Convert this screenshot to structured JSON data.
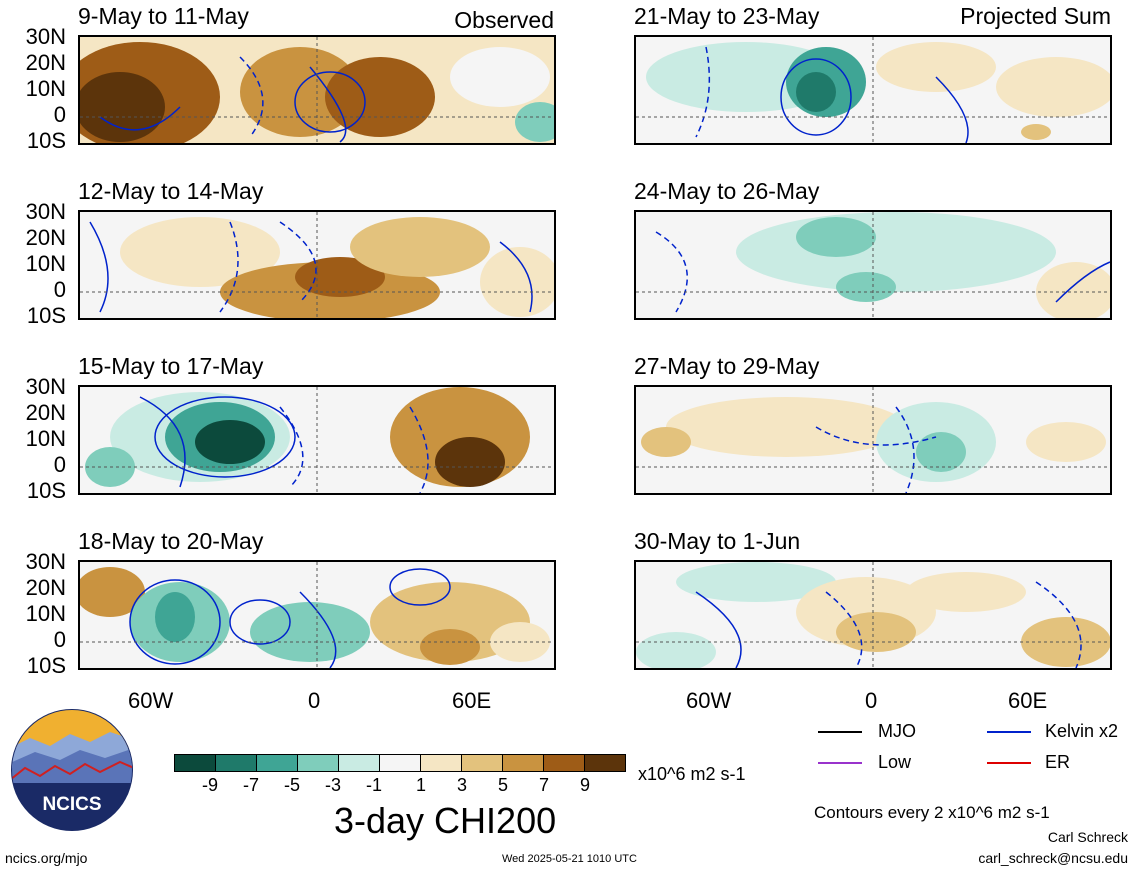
{
  "observed_label": "Observed",
  "projected_label": "Projected Sum",
  "observed_panels": [
    {
      "title": "9-May to 11-May"
    },
    {
      "title": "12-May to 14-May"
    },
    {
      "title": "15-May to 17-May"
    },
    {
      "title": "18-May to 20-May"
    }
  ],
  "projected_panels": [
    {
      "title": "21-May to 23-May"
    },
    {
      "title": "24-May to 26-May"
    },
    {
      "title": "27-May to 29-May"
    },
    {
      "title": "30-May to 1-Jun"
    }
  ],
  "lat_labels": [
    "30N",
    "20N",
    "10N",
    "0",
    "10S"
  ],
  "lon_labels": [
    "60W",
    "0",
    "60E"
  ],
  "colorbar": {
    "colors": [
      "#0c4a3c",
      "#1f7a6a",
      "#3fa595",
      "#7fcdbb",
      "#c9ebe3",
      "#f5f5f5",
      "#f5e6c4",
      "#e3c27d",
      "#c99340",
      "#9e5c17",
      "#5c340b"
    ],
    "ticks": [
      "-9",
      "-7",
      "-5",
      "-3",
      "-1",
      "1",
      "3",
      "5",
      "7",
      "9"
    ],
    "units": "x10^6 m2 s-1",
    "title": "3-day CHI200"
  },
  "legend": [
    {
      "label": "MJO",
      "color": "#000000"
    },
    {
      "label": "Kelvin x2",
      "color": "#0022cc"
    },
    {
      "label": "Low",
      "color": "#9933cc"
    },
    {
      "label": "ER",
      "color": "#dd0000"
    }
  ],
  "contour_note": "Contours every 2 x10^6 m2 s-1",
  "author": "Carl Schreck",
  "email": "carl_schreck@ncsu.edu",
  "site": "ncics.org/mjo",
  "timestamp": "Wed 2025-05-21 1010 UTC",
  "logo_text": "NCICS"
}
